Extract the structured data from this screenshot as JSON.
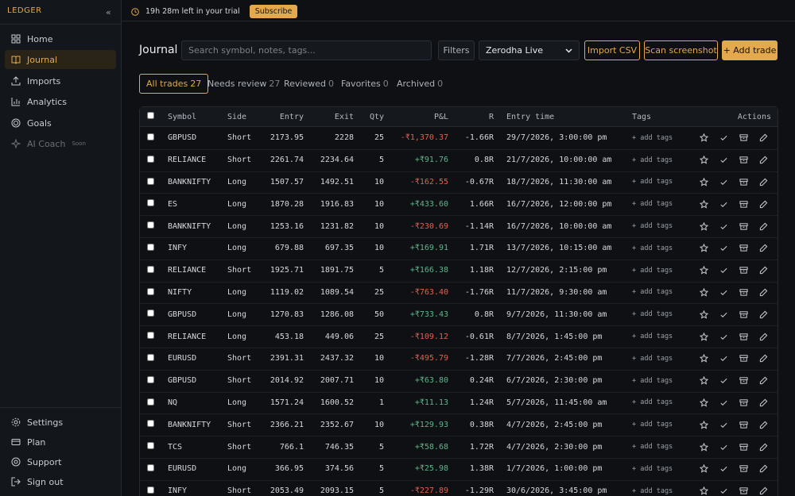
{
  "sidebar": {
    "brand": "LEDGER",
    "nav": [
      {
        "label": "Home"
      },
      {
        "label": "Journal"
      },
      {
        "label": "Imports"
      },
      {
        "label": "Analytics"
      },
      {
        "label": "Goals"
      },
      {
        "label": "AI Coach",
        "badge": "Soon"
      }
    ],
    "footer": [
      "Settings",
      "Plan",
      "Support",
      "Sign out"
    ]
  },
  "topbar": {
    "trial": "19h 28m left in your trial",
    "subscribe": "Subscribe"
  },
  "toolbar": {
    "title": "Journal",
    "search_placeholder": "Search symbol, notes, tags...",
    "filters": "Filters",
    "account": "Zerodha Live",
    "import_csv": "Import CSV",
    "scan": "Scan screenshot",
    "add_trade": "+ Add trade"
  },
  "tabs": [
    {
      "label": "All trades",
      "count": "27"
    },
    {
      "label": "Needs review",
      "count": "27"
    },
    {
      "label": "Reviewed",
      "count": "0"
    },
    {
      "label": "Favorites",
      "count": "0"
    },
    {
      "label": "Archived",
      "count": "0"
    }
  ],
  "table": {
    "columns": [
      "Symbol",
      "Side",
      "Entry",
      "Exit",
      "Qty",
      "P&L",
      "R",
      "Entry time",
      "Tags",
      "Actions"
    ],
    "add_tags": "+ add tags",
    "rows": [
      [
        "GBPUSD",
        "Short",
        "2173.95",
        "2228",
        "25",
        "-₹1,370.37",
        "-1.66R",
        "29/7/2026, 3:00:00 pm"
      ],
      [
        "RELIANCE",
        "Short",
        "2261.74",
        "2234.64",
        "5",
        "+₹91.76",
        "0.8R",
        "21/7/2026, 10:00:00 am"
      ],
      [
        "BANKNIFTY",
        "Long",
        "1507.57",
        "1492.51",
        "10",
        "-₹162.55",
        "-0.67R",
        "18/7/2026, 11:30:00 am"
      ],
      [
        "ES",
        "Long",
        "1870.28",
        "1916.83",
        "10",
        "+₹433.60",
        "1.66R",
        "16/7/2026, 12:00:00 pm"
      ],
      [
        "BANKNIFTY",
        "Long",
        "1253.16",
        "1231.82",
        "10",
        "-₹230.69",
        "-1.14R",
        "16/7/2026, 10:00:00 am"
      ],
      [
        "INFY",
        "Long",
        "679.88",
        "697.35",
        "10",
        "+₹169.91",
        "1.71R",
        "13/7/2026, 10:15:00 am"
      ],
      [
        "RELIANCE",
        "Short",
        "1925.71",
        "1891.75",
        "5",
        "+₹166.38",
        "1.18R",
        "12/7/2026, 2:15:00 pm"
      ],
      [
        "NIFTY",
        "Long",
        "1119.02",
        "1089.54",
        "25",
        "-₹763.40",
        "-1.76R",
        "11/7/2026, 9:30:00 am"
      ],
      [
        "GBPUSD",
        "Long",
        "1270.83",
        "1286.08",
        "50",
        "+₹733.43",
        "0.8R",
        "9/7/2026, 11:30:00 am"
      ],
      [
        "RELIANCE",
        "Long",
        "453.18",
        "449.06",
        "25",
        "-₹109.12",
        "-0.61R",
        "8/7/2026, 1:45:00 pm"
      ],
      [
        "EURUSD",
        "Short",
        "2391.31",
        "2437.32",
        "10",
        "-₹495.79",
        "-1.28R",
        "7/7/2026, 2:45:00 pm"
      ],
      [
        "GBPUSD",
        "Short",
        "2014.92",
        "2007.71",
        "10",
        "+₹63.80",
        "0.24R",
        "6/7/2026, 2:30:00 pm"
      ],
      [
        "NQ",
        "Long",
        "1571.24",
        "1600.52",
        "1",
        "+₹11.13",
        "1.24R",
        "5/7/2026, 11:45:00 am"
      ],
      [
        "BANKNIFTY",
        "Short",
        "2366.21",
        "2352.67",
        "10",
        "+₹129.93",
        "0.38R",
        "4/7/2026, 2:45:00 pm"
      ],
      [
        "TCS",
        "Short",
        "766.1",
        "746.35",
        "5",
        "+₹58.68",
        "1.72R",
        "4/7/2026, 2:30:00 pm"
      ],
      [
        "EURUSD",
        "Long",
        "366.95",
        "374.56",
        "5",
        "+₹25.98",
        "1.38R",
        "1/7/2026, 1:00:00 pm"
      ],
      [
        "INFY",
        "Short",
        "2053.49",
        "2093.15",
        "5",
        "-₹227.89",
        "-1.29R",
        "30/6/2026, 3:45:00 pm"
      ]
    ]
  }
}
